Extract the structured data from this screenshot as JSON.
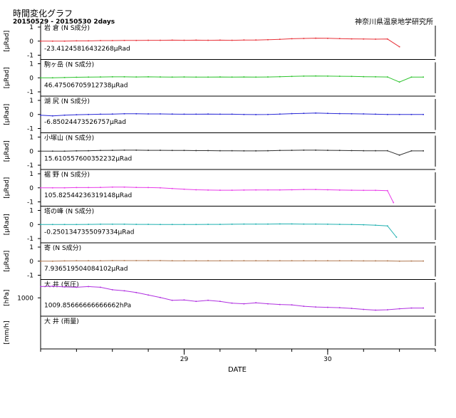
{
  "header": {
    "title": "時間変化グラフ",
    "period": "20150529 - 20150530 2days",
    "institute": "神奈川県温泉地学研究所"
  },
  "x_axis": {
    "label": "DATE",
    "ticks": [
      {
        "label": "29",
        "value": 24
      },
      {
        "label": "30",
        "value": 48
      }
    ]
  },
  "chart_data": [
    {
      "type": "line",
      "title": "岩 倉 (N S成分)",
      "ylabel": "[μRad]",
      "ylim": [
        -1,
        1
      ],
      "yticks": [
        -1,
        0,
        1
      ],
      "reading": "-23.41245816432268μRad",
      "color": "#e8333a",
      "x_hours": [
        0,
        2,
        4,
        6,
        8,
        10,
        12,
        14,
        16,
        18,
        20,
        22,
        24,
        26,
        28,
        30,
        32,
        34,
        36,
        38,
        40,
        42,
        44,
        46,
        48,
        50,
        52,
        54,
        56,
        58,
        60
      ],
      "values": [
        0.0,
        0.0,
        0.0,
        0.02,
        0.02,
        0.04,
        0.04,
        0.05,
        0.05,
        0.06,
        0.06,
        0.07,
        0.06,
        0.07,
        0.06,
        0.07,
        0.06,
        0.08,
        0.08,
        0.1,
        0.13,
        0.17,
        0.19,
        0.21,
        0.2,
        0.18,
        0.16,
        0.15,
        0.14,
        0.15,
        -0.4
      ]
    },
    {
      "type": "line",
      "title": "駒ヶ岳 (N S成分)",
      "ylabel": "[μRad]",
      "ylim": [
        -1,
        1
      ],
      "yticks": [
        -1,
        0,
        1
      ],
      "reading": "46.47506705912738μRad",
      "color": "#2ec42e",
      "x_hours": [
        0,
        2,
        4,
        6,
        8,
        10,
        12,
        14,
        16,
        18,
        20,
        22,
        24,
        26,
        28,
        30,
        32,
        34,
        36,
        38,
        40,
        42,
        44,
        46,
        48,
        50,
        52,
        54,
        56,
        58,
        60,
        62,
        64
      ],
      "values": [
        0.0,
        0.0,
        0.02,
        0.04,
        0.05,
        0.06,
        0.07,
        0.07,
        0.06,
        0.07,
        0.06,
        0.05,
        0.06,
        0.05,
        0.05,
        0.06,
        0.05,
        0.06,
        0.05,
        0.06,
        0.08,
        0.1,
        0.12,
        0.13,
        0.12,
        0.11,
        0.1,
        0.08,
        0.07,
        0.06,
        -0.3,
        0.05,
        0.05
      ]
    },
    {
      "type": "line",
      "title": "湖 尻 (N S成分)",
      "ylabel": "[μRad]",
      "ylim": [
        -1,
        1
      ],
      "yticks": [
        -1,
        0,
        1
      ],
      "reading": "-6.85024473526757μRad",
      "color": "#2a2ad6",
      "x_hours": [
        0,
        2,
        4,
        6,
        8,
        10,
        12,
        14,
        16,
        18,
        20,
        22,
        24,
        26,
        28,
        30,
        32,
        34,
        36,
        38,
        40,
        42,
        44,
        46,
        48,
        50,
        52,
        54,
        56,
        58,
        60,
        62,
        64
      ],
      "values": [
        -0.05,
        -0.1,
        -0.05,
        -0.02,
        0.0,
        0.02,
        0.03,
        0.05,
        0.05,
        0.04,
        0.04,
        0.03,
        0.02,
        0.02,
        0.03,
        0.02,
        0.02,
        0.0,
        -0.01,
        0.0,
        0.03,
        0.06,
        0.08,
        0.1,
        0.08,
        0.06,
        0.05,
        0.04,
        0.02,
        0.0,
        0.0,
        0.0,
        0.0
      ]
    },
    {
      "type": "line",
      "title": "小塚山 (N S成分)",
      "ylabel": "[μRad]",
      "ylim": [
        -1,
        1
      ],
      "yticks": [
        -1,
        0,
        1
      ],
      "reading": "15.61055760035223​2μRad",
      "color": "#303030",
      "x_hours": [
        0,
        2,
        4,
        6,
        8,
        10,
        12,
        14,
        16,
        18,
        20,
        22,
        24,
        26,
        28,
        30,
        32,
        34,
        36,
        38,
        40,
        42,
        44,
        46,
        48,
        50,
        52,
        54,
        56,
        58,
        60,
        62,
        64
      ],
      "values": [
        0.0,
        0.0,
        0.0,
        0.02,
        0.03,
        0.05,
        0.06,
        0.07,
        0.07,
        0.06,
        0.06,
        0.05,
        0.05,
        0.04,
        0.04,
        0.03,
        0.03,
        0.02,
        0.02,
        0.03,
        0.05,
        0.06,
        0.07,
        0.07,
        0.06,
        0.05,
        0.04,
        0.03,
        0.03,
        0.03,
        -0.28,
        0.02,
        0.02
      ]
    },
    {
      "type": "line",
      "title": "裾 野 (N S成分)",
      "ylabel": "[μRad]",
      "ylim": [
        -1,
        1
      ],
      "yticks": [
        -1,
        0,
        1
      ],
      "reading": "105.82544236319148μRad",
      "color": "#e83ae8",
      "x_hours": [
        0,
        2,
        4,
        6,
        8,
        10,
        12,
        14,
        16,
        18,
        20,
        22,
        24,
        26,
        28,
        30,
        32,
        34,
        36,
        38,
        40,
        42,
        44,
        46,
        48,
        50,
        52,
        54,
        56,
        58,
        59
      ],
      "values": [
        0.0,
        0.0,
        0.0,
        0.02,
        0.02,
        0.03,
        0.05,
        0.05,
        0.03,
        0.02,
        0.0,
        -0.05,
        -0.1,
        -0.14,
        -0.16,
        -0.17,
        -0.17,
        -0.16,
        -0.15,
        -0.15,
        -0.15,
        -0.14,
        -0.12,
        -0.12,
        -0.14,
        -0.16,
        -0.17,
        -0.18,
        -0.18,
        -0.2,
        -1.05
      ]
    },
    {
      "type": "line",
      "title": "塔の峰 (N S成分)",
      "ylabel": "[μRad]",
      "ylim": [
        -1,
        1
      ],
      "yticks": [
        -1,
        0,
        1
      ],
      "reading": "-0.2501347355097334μRad",
      "color": "#1fb0b0",
      "x_hours": [
        0,
        2,
        4,
        6,
        8,
        10,
        12,
        14,
        16,
        18,
        20,
        22,
        24,
        26,
        28,
        30,
        32,
        34,
        36,
        38,
        40,
        42,
        44,
        46,
        48,
        50,
        52,
        54,
        56,
        58,
        59.5
      ],
      "values": [
        0.0,
        0.0,
        0.0,
        0.0,
        0.01,
        0.02,
        0.02,
        0.02,
        0.01,
        0.01,
        0.0,
        0.0,
        0.0,
        0.0,
        0.01,
        0.01,
        0.02,
        0.03,
        0.03,
        0.03,
        0.04,
        0.04,
        0.03,
        0.03,
        0.02,
        0.01,
        0.0,
        -0.02,
        -0.05,
        -0.1,
        -0.9
      ]
    },
    {
      "type": "line",
      "title": "寄 (N S成分)",
      "ylabel": "[μRad]",
      "ylim": [
        -1,
        1
      ],
      "yticks": [
        -1,
        0,
        1
      ],
      "reading": "7.93651950408410​2μRad",
      "color": "#b07850",
      "x_hours": [
        0,
        2,
        4,
        6,
        8,
        10,
        12,
        14,
        16,
        18,
        20,
        22,
        24,
        26,
        28,
        30,
        32,
        34,
        36,
        38,
        40,
        42,
        44,
        46,
        48,
        50,
        52,
        54,
        56,
        58,
        60,
        62,
        64
      ],
      "values": [
        0.0,
        0.0,
        0.02,
        0.03,
        0.03,
        0.03,
        0.04,
        0.04,
        0.04,
        0.04,
        0.04,
        0.03,
        0.03,
        0.03,
        0.03,
        0.03,
        0.03,
        0.03,
        0.03,
        0.03,
        0.03,
        0.03,
        0.03,
        0.03,
        0.03,
        0.03,
        0.03,
        0.02,
        0.02,
        0.02,
        0.0,
        0.01,
        0.01
      ]
    },
    {
      "type": "line",
      "title": "大 井 (気圧)",
      "ylabel": "[hPa]",
      "ylim": [
        996,
        1004
      ],
      "yticks": [
        1000
      ],
      "reading": "1009.85666666666662hPa",
      "color": "#b030e0",
      "x_hours": [
        0,
        2,
        4,
        6,
        8,
        10,
        12,
        14,
        16,
        18,
        20,
        22,
        24,
        26,
        28,
        30,
        32,
        34,
        36,
        38,
        40,
        42,
        44,
        46,
        48,
        50,
        52,
        54,
        56,
        58,
        60,
        62,
        64
      ],
      "values": [
        1003.2,
        1003.3,
        1003.1,
        1003.0,
        1003.2,
        1003.0,
        1002.3,
        1002.0,
        1001.5,
        1000.8,
        1000.1,
        999.3,
        999.4,
        999.0,
        999.3,
        999.0,
        998.5,
        998.3,
        998.6,
        998.3,
        998.1,
        998.0,
        997.6,
        997.4,
        997.3,
        997.2,
        997.0,
        996.7,
        996.5,
        996.6,
        996.9,
        997.1,
        997.1
      ]
    },
    {
      "type": "line",
      "title": "大 井 (雨量)",
      "ylabel": "[mm/h]",
      "ylim": [
        0,
        10
      ],
      "yticks": [],
      "reading": "",
      "color": "#3a3a3a",
      "x_hours": [],
      "values": []
    }
  ]
}
